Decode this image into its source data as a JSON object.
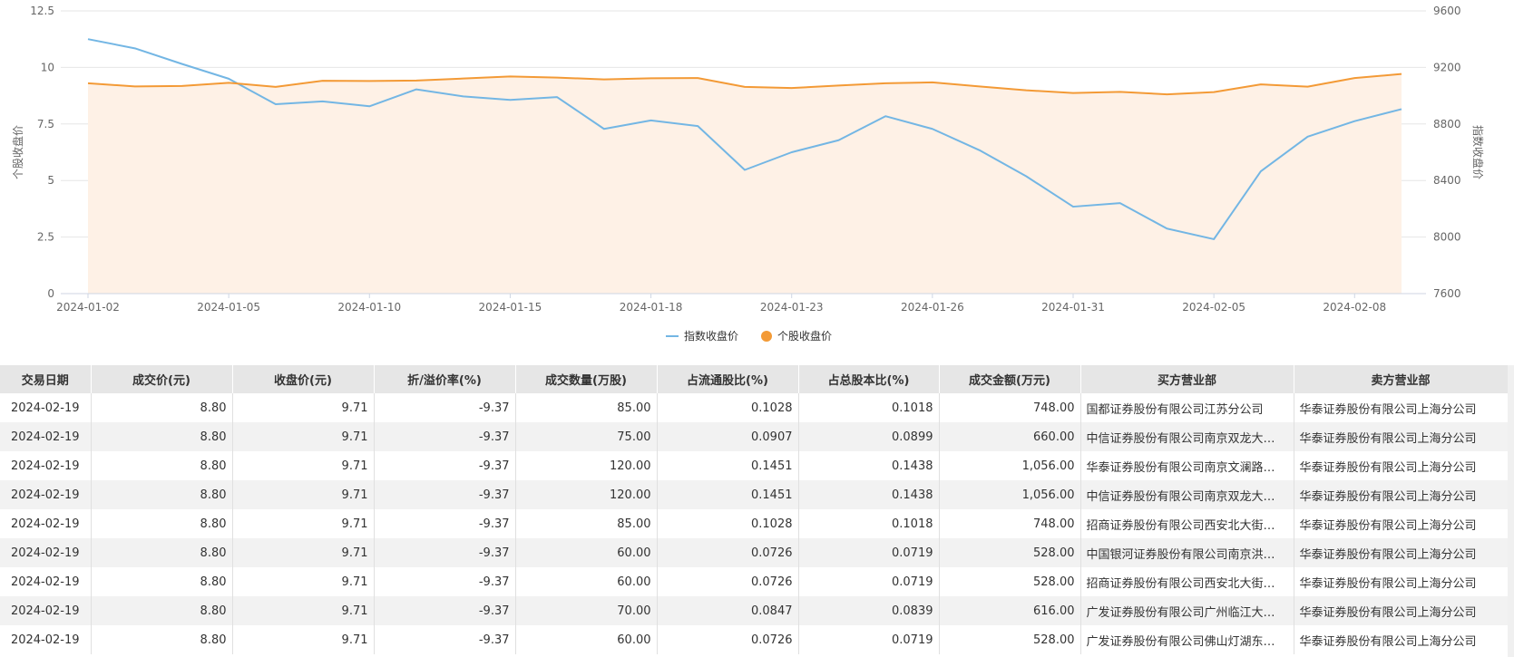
{
  "chart_data": {
    "type": "line",
    "x": [
      "2024-01-02",
      "2024-01-03",
      "2024-01-04",
      "2024-01-05",
      "2024-01-08",
      "2024-01-09",
      "2024-01-10",
      "2024-01-11",
      "2024-01-12",
      "2024-01-15",
      "2024-01-16",
      "2024-01-17",
      "2024-01-18",
      "2024-01-19",
      "2024-01-22",
      "2024-01-23",
      "2024-01-24",
      "2024-01-25",
      "2024-01-26",
      "2024-01-29",
      "2024-01-30",
      "2024-01-31",
      "2024-02-01",
      "2024-02-02",
      "2024-02-05",
      "2024-02-06",
      "2024-02-07",
      "2024-02-08",
      "2024-02-09"
    ],
    "x_tick_labels": [
      "2024-01-02",
      "2024-01-05",
      "2024-01-10",
      "2024-01-15",
      "2024-01-18",
      "2024-01-23",
      "2024-01-26",
      "2024-01-31",
      "2024-02-05",
      "2024-02-08"
    ],
    "series": [
      {
        "name": "指数收盘价",
        "axis": "right",
        "color": "#73b6e4",
        "values": [
          9400,
          9335,
          9225,
          9120,
          8940,
          8960,
          8925,
          9045,
          8995,
          8970,
          8990,
          8765,
          8825,
          8785,
          8475,
          8600,
          8685,
          8855,
          8765,
          8615,
          8430,
          8215,
          8240,
          8060,
          7985,
          8465,
          8710,
          8820,
          8905
        ]
      },
      {
        "name": "个股收盘价",
        "axis": "left",
        "color": "#f39a36",
        "area_color": "#fef1e6",
        "values": [
          9.3,
          9.16,
          9.18,
          9.32,
          9.14,
          9.41,
          9.4,
          9.42,
          9.51,
          9.6,
          9.55,
          9.47,
          9.52,
          9.53,
          9.14,
          9.09,
          9.2,
          9.3,
          9.34,
          9.16,
          8.99,
          8.87,
          8.92,
          8.81,
          8.91,
          9.25,
          9.15,
          9.53,
          9.71
        ]
      }
    ],
    "y_left": {
      "label": "个股收盘价",
      "min": 0,
      "max": 12.5,
      "ticks": [
        "0",
        "2.5",
        "5",
        "7.5",
        "10",
        "12.5"
      ]
    },
    "y_right": {
      "label": "指数收盘价",
      "min": 7600,
      "max": 9600,
      "ticks": [
        "7600",
        "8000",
        "8400",
        "8800",
        "9200",
        "9600"
      ]
    },
    "legend": {
      "placement": "bottom-center",
      "items": [
        "指数收盘价",
        "个股收盘价"
      ]
    }
  },
  "table": {
    "headers": [
      "交易日期",
      "成交价(元)",
      "收盘价(元)",
      "折/溢价率(%)",
      "成交数量(万股)",
      "占流通股比(%)",
      "占总股本比(%)",
      "成交金额(万元)",
      "买方营业部",
      "卖方营业部"
    ],
    "rows": [
      [
        "2024-02-19",
        "8.80",
        "9.71",
        "-9.37",
        "85.00",
        "0.1028",
        "0.1018",
        "748.00",
        "国都证券股份有限公司江苏分公司",
        "华泰证券股份有限公司上海分公司"
      ],
      [
        "2024-02-19",
        "8.80",
        "9.71",
        "-9.37",
        "75.00",
        "0.0907",
        "0.0899",
        "660.00",
        "中信证券股份有限公司南京双龙大…",
        "华泰证券股份有限公司上海分公司"
      ],
      [
        "2024-02-19",
        "8.80",
        "9.71",
        "-9.37",
        "120.00",
        "0.1451",
        "0.1438",
        "1,056.00",
        "华泰证券股份有限公司南京文澜路…",
        "华泰证券股份有限公司上海分公司"
      ],
      [
        "2024-02-19",
        "8.80",
        "9.71",
        "-9.37",
        "120.00",
        "0.1451",
        "0.1438",
        "1,056.00",
        "中信证券股份有限公司南京双龙大…",
        "华泰证券股份有限公司上海分公司"
      ],
      [
        "2024-02-19",
        "8.80",
        "9.71",
        "-9.37",
        "85.00",
        "0.1028",
        "0.1018",
        "748.00",
        "招商证券股份有限公司西安北大街…",
        "华泰证券股份有限公司上海分公司"
      ],
      [
        "2024-02-19",
        "8.80",
        "9.71",
        "-9.37",
        "60.00",
        "0.0726",
        "0.0719",
        "528.00",
        "中国银河证券股份有限公司南京洪…",
        "华泰证券股份有限公司上海分公司"
      ],
      [
        "2024-02-19",
        "8.80",
        "9.71",
        "-9.37",
        "60.00",
        "0.0726",
        "0.0719",
        "528.00",
        "招商证券股份有限公司西安北大街…",
        "华泰证券股份有限公司上海分公司"
      ],
      [
        "2024-02-19",
        "8.80",
        "9.71",
        "-9.37",
        "70.00",
        "0.0847",
        "0.0839",
        "616.00",
        "广发证券股份有限公司广州临江大…",
        "华泰证券股份有限公司上海分公司"
      ],
      [
        "2024-02-19",
        "8.80",
        "9.71",
        "-9.37",
        "60.00",
        "0.0726",
        "0.0719",
        "528.00",
        "广发证券股份有限公司佛山灯湖东…",
        "华泰证券股份有限公司上海分公司"
      ]
    ]
  }
}
